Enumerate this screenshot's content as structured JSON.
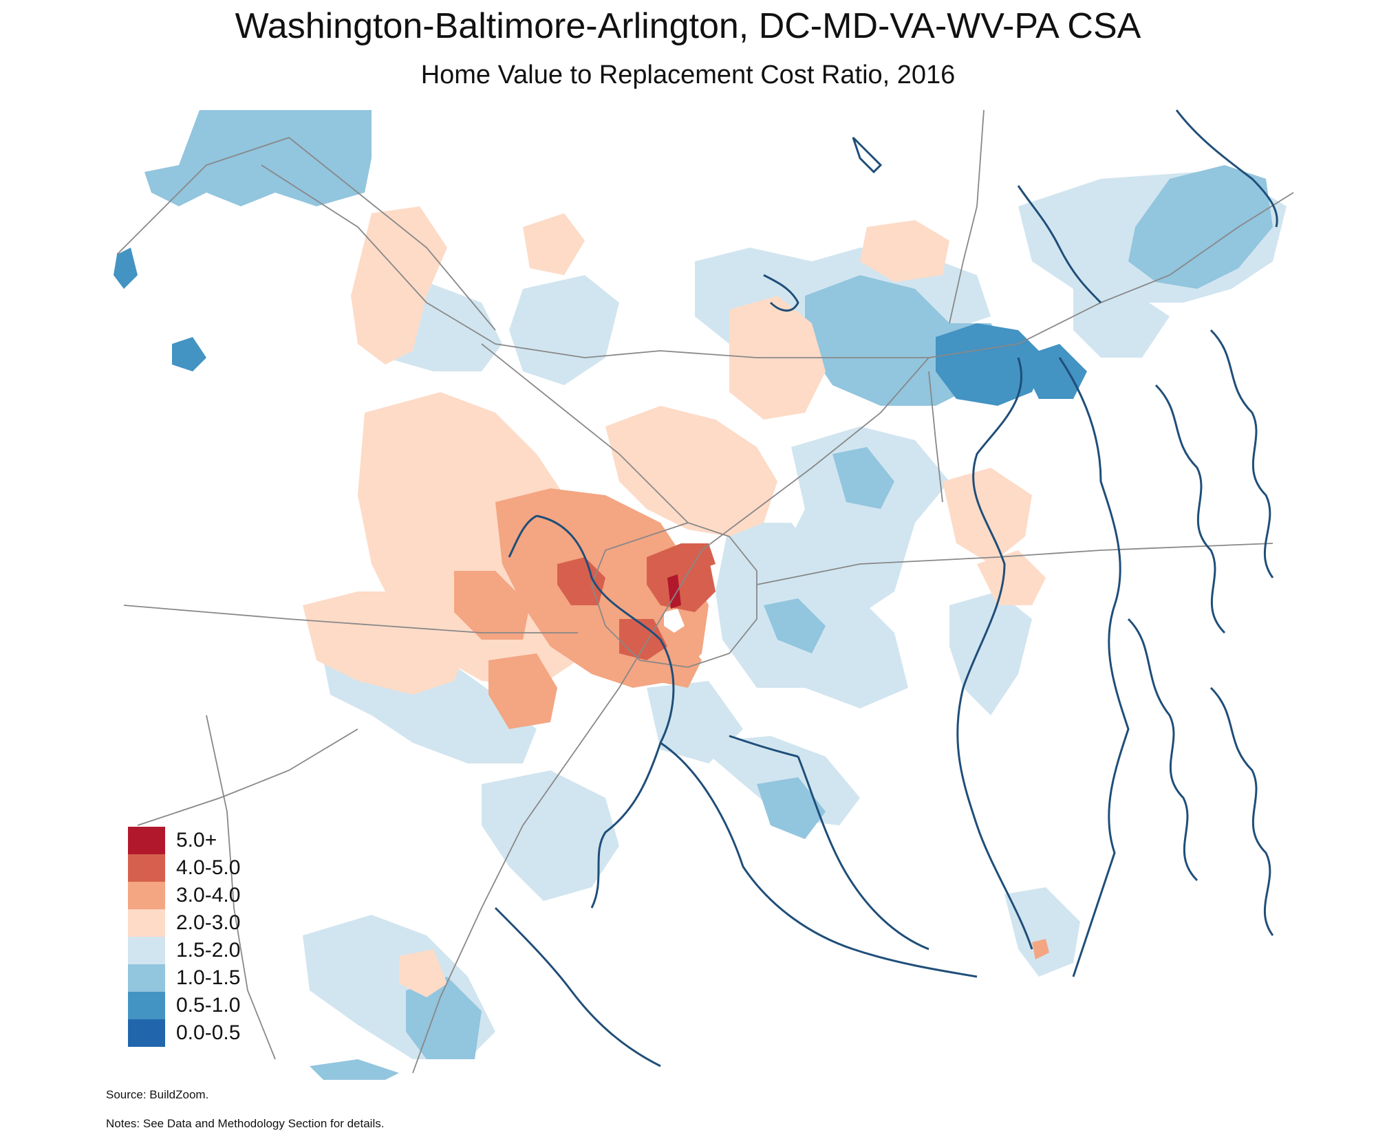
{
  "title": "Washington-Baltimore-Arlington, DC-MD-VA-WV-PA CSA",
  "subtitle": "Home Value to Replacement Cost Ratio, 2016",
  "legend": [
    {
      "label": "5.0+",
      "color": "#b2182b"
    },
    {
      "label": "4.0-5.0",
      "color": "#d6604d"
    },
    {
      "label": "3.0-4.0",
      "color": "#f4a582"
    },
    {
      "label": "2.0-3.0",
      "color": "#fddbc7"
    },
    {
      "label": "1.5-2.0",
      "color": "#d1e5f0"
    },
    {
      "label": "1.0-1.5",
      "color": "#92c5de"
    },
    {
      "label": "0.5-1.0",
      "color": "#4393c3"
    },
    {
      "label": "0.0-0.5",
      "color": "#2166ac"
    }
  ],
  "source": "Source: BuildZoom.",
  "notes": "Notes: See Data and Methodology Section for details.",
  "colors": {
    "water": "#1f4e79",
    "roads": "#888888"
  }
}
